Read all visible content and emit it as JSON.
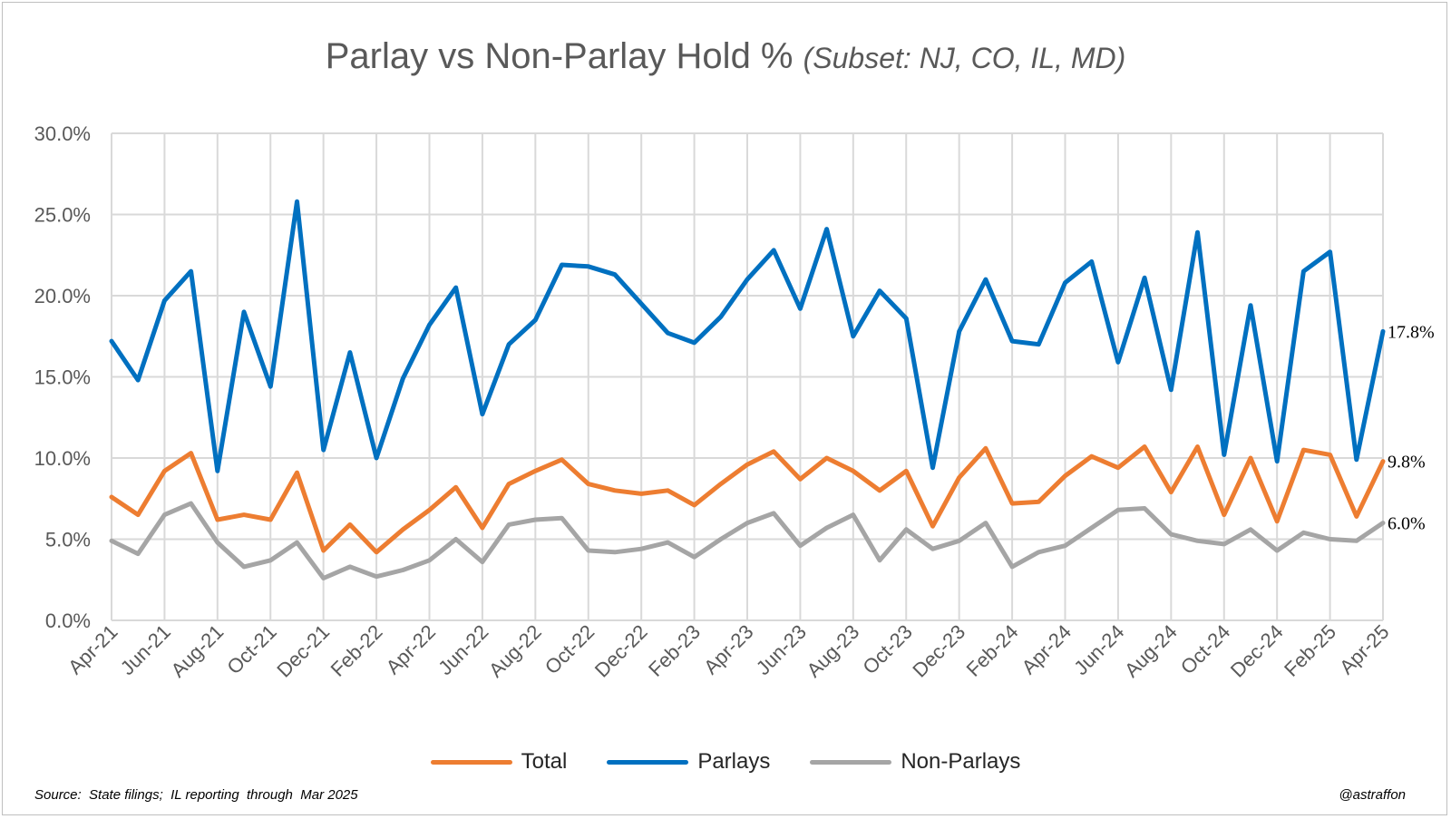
{
  "title": {
    "main": "Parlay vs Non-Parlay Hold %",
    "subtitle": "(Subset: NJ, CO, IL, MD)"
  },
  "footer": {
    "source": "Source:  State filings;  IL reporting  through  Mar 2025",
    "handle": "@astraffon"
  },
  "chart_data": {
    "type": "line",
    "ylim": [
      0,
      30
    ],
    "y_ticks": [
      "0.0%",
      "5.0%",
      "10.0%",
      "15.0%",
      "20.0%",
      "25.0%",
      "30.0%"
    ],
    "y_tick_values": [
      0,
      5,
      10,
      15,
      20,
      25,
      30
    ],
    "grid": true,
    "legend_position": "bottom",
    "x": [
      "Apr-21",
      "May-21",
      "Jun-21",
      "Jul-21",
      "Aug-21",
      "Sep-21",
      "Oct-21",
      "Nov-21",
      "Dec-21",
      "Jan-22",
      "Feb-22",
      "Mar-22",
      "Apr-22",
      "May-22",
      "Jun-22",
      "Jul-22",
      "Aug-22",
      "Sep-22",
      "Oct-22",
      "Nov-22",
      "Dec-22",
      "Jan-23",
      "Feb-23",
      "Mar-23",
      "Apr-23",
      "May-23",
      "Jun-23",
      "Jul-23",
      "Aug-23",
      "Sep-23",
      "Oct-23",
      "Nov-23",
      "Dec-23",
      "Jan-24",
      "Feb-24",
      "Mar-24",
      "Apr-24",
      "May-24",
      "Jun-24",
      "Jul-24",
      "Aug-24",
      "Sep-24",
      "Oct-24",
      "Nov-24",
      "Dec-24",
      "Jan-25",
      "Feb-25",
      "Mar-25",
      "Apr-25"
    ],
    "x_tick_labels": [
      "Apr-21",
      "Jun-21",
      "Aug-21",
      "Oct-21",
      "Dec-21",
      "Feb-22",
      "Apr-22",
      "Jun-22",
      "Aug-22",
      "Oct-22",
      "Dec-22",
      "Feb-23",
      "Apr-23",
      "Jun-23",
      "Aug-23",
      "Oct-23",
      "Dec-23",
      "Feb-24",
      "Apr-24",
      "Jun-24",
      "Aug-24",
      "Oct-24",
      "Dec-24",
      "Feb-25",
      "Apr-25"
    ],
    "series": [
      {
        "name": "Total",
        "color": "#ed7d31",
        "end_label": "9.8%",
        "values": [
          7.6,
          6.5,
          9.2,
          10.3,
          6.2,
          6.5,
          6.2,
          9.1,
          4.3,
          5.9,
          4.2,
          5.6,
          6.8,
          8.2,
          5.7,
          8.4,
          9.2,
          9.9,
          8.4,
          8.0,
          7.8,
          8.0,
          7.1,
          8.4,
          9.6,
          10.4,
          8.7,
          10.0,
          9.2,
          8.0,
          9.2,
          5.8,
          8.8,
          10.6,
          7.2,
          7.3,
          8.9,
          10.1,
          9.4,
          10.7,
          7.9,
          10.7,
          6.5,
          10.0,
          6.1,
          10.5,
          10.2,
          6.4,
          9.8
        ]
      },
      {
        "name": "Parlays",
        "color": "#0070c0",
        "end_label": "17.8%",
        "values": [
          17.2,
          14.8,
          19.7,
          21.5,
          9.2,
          19.0,
          14.4,
          25.8,
          10.5,
          16.5,
          10.0,
          14.9,
          18.2,
          20.5,
          12.7,
          17.0,
          18.5,
          21.9,
          21.8,
          21.3,
          19.5,
          17.7,
          17.1,
          18.7,
          21.0,
          22.8,
          19.2,
          24.1,
          17.5,
          20.3,
          18.6,
          9.4,
          17.8,
          21.0,
          17.2,
          17.0,
          20.8,
          22.1,
          15.9,
          21.1,
          14.2,
          23.9,
          10.2,
          19.4,
          9.8,
          21.5,
          22.7,
          9.9,
          17.8
        ]
      },
      {
        "name": "Non-Parlays",
        "color": "#a5a5a5",
        "end_label": "6.0%",
        "values": [
          4.9,
          4.1,
          6.5,
          7.2,
          4.8,
          3.3,
          3.7,
          4.8,
          2.6,
          3.3,
          2.7,
          3.1,
          3.7,
          5.0,
          3.6,
          5.9,
          6.2,
          6.3,
          4.3,
          4.2,
          4.4,
          4.8,
          3.9,
          5.0,
          6.0,
          6.6,
          4.6,
          5.7,
          6.5,
          3.7,
          5.6,
          4.4,
          4.9,
          6.0,
          3.3,
          4.2,
          4.6,
          5.7,
          6.8,
          6.9,
          5.3,
          4.9,
          4.7,
          5.6,
          4.3,
          5.4,
          5.0,
          4.9,
          6.0
        ]
      }
    ]
  }
}
